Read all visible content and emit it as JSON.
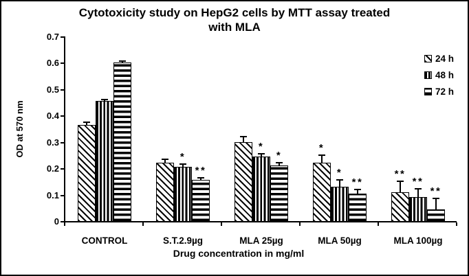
{
  "window": {
    "background": "#ffffff",
    "border_color": "#000000",
    "text_color": "#000000"
  },
  "chart_data": {
    "type": "bar",
    "title": "Cytotoxicity study on HepG2 cells by MTT assay treated with MLA",
    "title_lines": [
      "Cytotoxicity study on HepG2 cells by MTT assay treated",
      "with MLA"
    ],
    "xlabel": "Drug concentration in mg/ml",
    "ylabel": "OD at 570 nm",
    "ylim": [
      0,
      0.7
    ],
    "ytick_step": 0.1,
    "ytick_labels": [
      "0",
      "0.1",
      "0.2",
      "0.3",
      "0.4",
      "0.5",
      "0.6",
      "0.7"
    ],
    "grid": false,
    "legend_position": "top-right",
    "categories": [
      "CONTROL",
      "S.T.2.9µg",
      "MLA 25µg",
      "MLA 50µg",
      "MLA 100µg"
    ],
    "series": [
      {
        "name": "24 h",
        "pattern": "diagonal",
        "values": [
          0.365,
          0.22,
          0.3,
          0.22,
          0.11
        ],
        "errors_plus": [
          0.01,
          0.015,
          0.02,
          0.03,
          0.04
        ],
        "significance": [
          "",
          "",
          "",
          "*",
          "**"
        ]
      },
      {
        "name": "48 h",
        "pattern": "vertical",
        "values": [
          0.455,
          0.205,
          0.245,
          0.13,
          0.09
        ],
        "errors_plus": [
          0.006,
          0.01,
          0.01,
          0.025,
          0.032
        ],
        "significance": [
          "",
          "*",
          "*",
          "*",
          "**"
        ]
      },
      {
        "name": "72 h",
        "pattern": "horizontal",
        "values": [
          0.6,
          0.155,
          0.21,
          0.105,
          0.045
        ],
        "errors_plus": [
          0.006,
          0.01,
          0.01,
          0.015,
          0.04
        ],
        "significance": [
          "",
          "**",
          "*",
          "**",
          "**"
        ]
      }
    ],
    "colors": {
      "bar_fill": "#ffffff",
      "bar_stroke": "#000000",
      "axis": "#000000",
      "text": "#000000"
    }
  }
}
